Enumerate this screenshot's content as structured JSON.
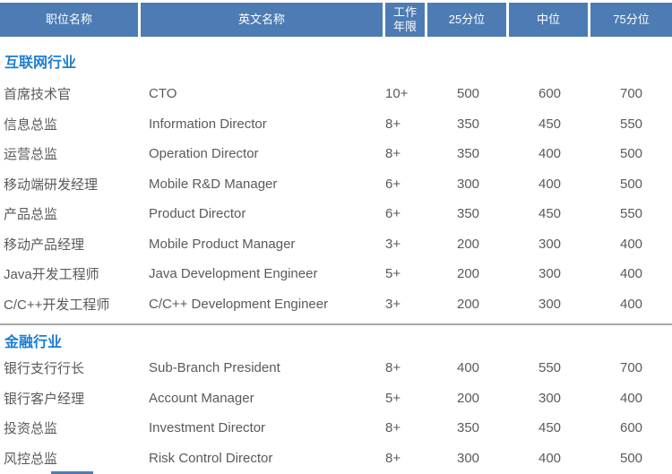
{
  "colors": {
    "header_bg": "#4d7cb5",
    "header_text": "#ffffff",
    "section_title": "#1e7dd2",
    "body_text": "#5a5a5a",
    "divider": "#a8a8a8"
  },
  "table": {
    "headers": [
      "职位名称",
      "英文名称",
      "工作年限",
      "25分位",
      "中位",
      "75分位"
    ],
    "sections": [
      {
        "title": "互联网行业",
        "divider": false,
        "rows": [
          {
            "name": "首席技术官",
            "en": "CTO",
            "years": "10+",
            "p25": "500",
            "median": "600",
            "p75": "700"
          },
          {
            "name": "信息总监",
            "en": "Information Director",
            "years": "8+",
            "p25": "350",
            "median": "450",
            "p75": "550"
          },
          {
            "name": "运营总监",
            "en": "Operation Director",
            "years": "8+",
            "p25": "350",
            "median": "400",
            "p75": "500"
          },
          {
            "name": "移动端研发经理",
            "en": "Mobile R&D Manager",
            "years": "6+",
            "p25": "300",
            "median": "400",
            "p75": "500"
          },
          {
            "name": "产品总监",
            "en": "Product Director",
            "years": "6+",
            "p25": "350",
            "median": "450",
            "p75": "550"
          },
          {
            "name": "移动产品经理",
            "en": "Mobile Product Manager",
            "years": "3+",
            "p25": "200",
            "median": "300",
            "p75": "400"
          },
          {
            "name": "Java开发工程师",
            "en": "Java Development Engineer",
            "years": "5+",
            "p25": "200",
            "median": "300",
            "p75": "400"
          },
          {
            "name": "C/C++开发工程师",
            "en": "C/C++ Development Engineer",
            "years": "3+",
            "p25": "200",
            "median": "300",
            "p75": "400"
          }
        ]
      },
      {
        "title": "金融行业",
        "divider": true,
        "rows": [
          {
            "name": "银行支行行长",
            "en": "Sub-Branch President",
            "years": "8+",
            "p25": "400",
            "median": "550",
            "p75": "700"
          },
          {
            "name": "银行客户经理",
            "en": "Account Manager",
            "years": "5+",
            "p25": "200",
            "median": "300",
            "p75": "400"
          },
          {
            "name": "投资总监",
            "en": "Investment Director",
            "years": "8+",
            "p25": "350",
            "median": "450",
            "p75": "600"
          },
          {
            "name": "风控总监",
            "en": "Risk Control Director",
            "years": "8+",
            "p25": "300",
            "median": "400",
            "p75": "500"
          }
        ]
      }
    ]
  }
}
